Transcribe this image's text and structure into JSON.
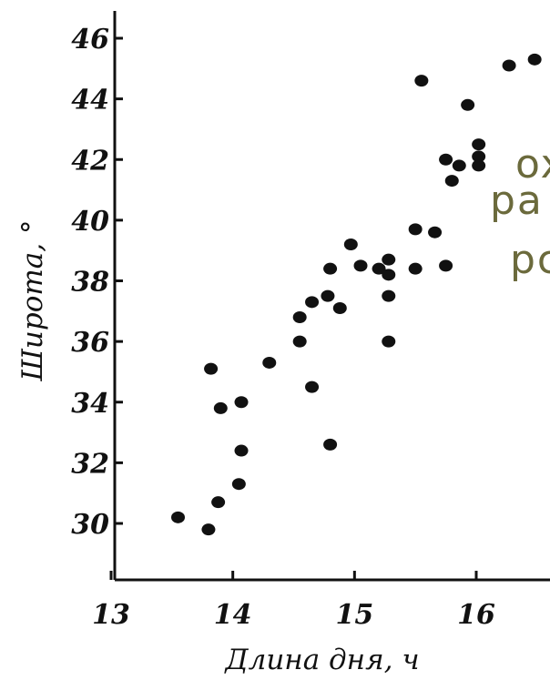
{
  "chart_data": {
    "type": "scatter",
    "xlabel": "Длина дня, ч",
    "ylabel": "Широта, °",
    "xlim": [
      13,
      16.6
    ],
    "ylim": [
      28,
      46.5
    ],
    "x_ticks": [
      13,
      14,
      15,
      16
    ],
    "y_ticks": [
      30,
      32,
      34,
      36,
      38,
      40,
      42,
      44,
      46
    ],
    "points": [
      {
        "x": 13.55,
        "y": 30.2
      },
      {
        "x": 13.8,
        "y": 29.8
      },
      {
        "x": 13.88,
        "y": 30.7
      },
      {
        "x": 14.05,
        "y": 31.3
      },
      {
        "x": 14.07,
        "y": 32.4
      },
      {
        "x": 13.82,
        "y": 35.1
      },
      {
        "x": 13.9,
        "y": 33.8
      },
      {
        "x": 14.07,
        "y": 34.0
      },
      {
        "x": 14.3,
        "y": 35.3
      },
      {
        "x": 14.55,
        "y": 36.0
      },
      {
        "x": 14.55,
        "y": 36.8
      },
      {
        "x": 14.65,
        "y": 37.3
      },
      {
        "x": 14.65,
        "y": 34.5
      },
      {
        "x": 14.78,
        "y": 37.5
      },
      {
        "x": 14.88,
        "y": 37.1
      },
      {
        "x": 14.8,
        "y": 38.4
      },
      {
        "x": 14.8,
        "y": 32.6
      },
      {
        "x": 14.97,
        "y": 39.2
      },
      {
        "x": 15.05,
        "y": 38.5
      },
      {
        "x": 15.2,
        "y": 38.4
      },
      {
        "x": 15.28,
        "y": 38.7
      },
      {
        "x": 15.28,
        "y": 38.2
      },
      {
        "x": 15.28,
        "y": 37.5
      },
      {
        "x": 15.28,
        "y": 36.0
      },
      {
        "x": 15.5,
        "y": 39.7
      },
      {
        "x": 15.5,
        "y": 38.4
      },
      {
        "x": 15.66,
        "y": 39.6
      },
      {
        "x": 15.75,
        "y": 38.5
      },
      {
        "x": 15.55,
        "y": 44.6
      },
      {
        "x": 15.75,
        "y": 42.0
      },
      {
        "x": 15.8,
        "y": 41.3
      },
      {
        "x": 15.86,
        "y": 41.8
      },
      {
        "x": 15.93,
        "y": 43.8
      },
      {
        "x": 16.02,
        "y": 42.5
      },
      {
        "x": 16.02,
        "y": 42.1
      },
      {
        "x": 16.02,
        "y": 41.8
      },
      {
        "x": 16.27,
        "y": 45.1
      },
      {
        "x": 16.48,
        "y": 45.3
      }
    ]
  },
  "overlay": {
    "line1": "ox",
    "line2": "pa",
    "line3": "pc"
  },
  "colors": {
    "ink": "#111111",
    "overlay_text": "#6b6a3c"
  }
}
